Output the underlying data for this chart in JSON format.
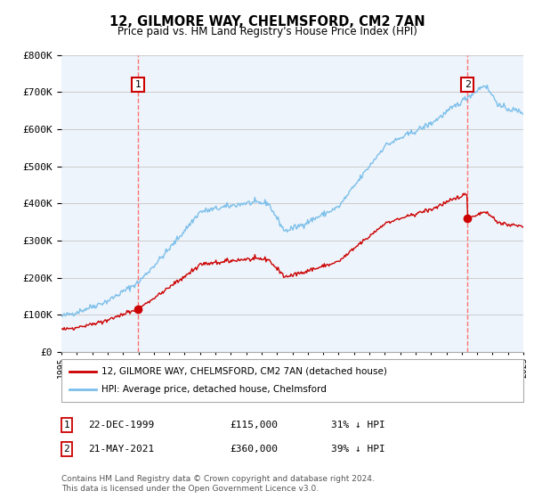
{
  "title": "12, GILMORE WAY, CHELMSFORD, CM2 7AN",
  "subtitle": "Price paid vs. HM Land Registry's House Price Index (HPI)",
  "ylim": [
    0,
    800000
  ],
  "yticks": [
    0,
    100000,
    200000,
    300000,
    400000,
    500000,
    600000,
    700000,
    800000
  ],
  "xlim_start": 1995.0,
  "xlim_end": 2025.0,
  "hpi_color": "#7bbfea",
  "price_color": "#cc0000",
  "vline_color": "#ff6666",
  "chart_bg_color": "#eef4fb",
  "marker1_year": 1999.97,
  "marker1_price": 115000,
  "marker1_label": "1",
  "marker1_date": "22-DEC-1999",
  "marker1_amount": "£115,000",
  "marker1_hpi": "31% ↓ HPI",
  "marker2_year": 2021.38,
  "marker2_price": 360000,
  "marker2_label": "2",
  "marker2_date": "21-MAY-2021",
  "marker2_amount": "£360,000",
  "marker2_hpi": "39% ↓ HPI",
  "legend_line1": "12, GILMORE WAY, CHELMSFORD, CM2 7AN (detached house)",
  "legend_line2": "HPI: Average price, detached house, Chelmsford",
  "footer": "Contains HM Land Registry data © Crown copyright and database right 2024.\nThis data is licensed under the Open Government Licence v3.0.",
  "background_color": "#ffffff",
  "grid_color": "#cccccc"
}
